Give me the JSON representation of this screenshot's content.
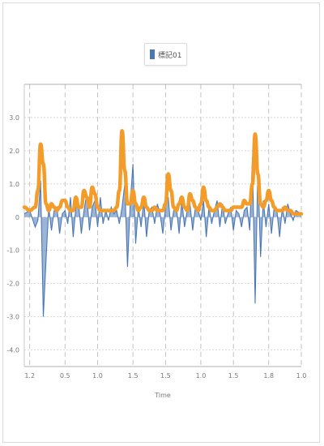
{
  "legend": {
    "label": "標記01",
    "swatch_color": "#4a78b5"
  },
  "chart_data": {
    "type": "line",
    "title": "",
    "xlabel": "Time",
    "ylabel": "",
    "xlim": [
      0.1,
      1.12
    ],
    "ylim": [
      -4.5,
      4.0
    ],
    "y_ticks": [
      3,
      2,
      1,
      0,
      -1,
      -2,
      -3,
      -4
    ],
    "x_ticks": [
      0.12,
      0.25,
      0.37,
      0.5,
      0.62,
      0.75,
      0.87,
      1.0,
      1.12
    ],
    "x_tick_labels": [
      "1.2",
      "0.5",
      "1.0",
      "1.5",
      "1.5",
      "1.0",
      "1.5",
      "1.8",
      "1.0"
    ],
    "y_tick_labels": [
      "3.0",
      "2.0",
      "1.0",
      "0",
      "-1.0",
      "-2.0",
      "-3.0",
      "-4.0"
    ],
    "grid": true,
    "series": [
      {
        "name": "標記01",
        "color": "#4a78b5",
        "style": "signal",
        "x": [
          0.1,
          0.12,
          0.14,
          0.15,
          0.16,
          0.17,
          0.18,
          0.19,
          0.2,
          0.21,
          0.22,
          0.23,
          0.24,
          0.25,
          0.26,
          0.27,
          0.28,
          0.29,
          0.3,
          0.31,
          0.32,
          0.33,
          0.34,
          0.35,
          0.36,
          0.37,
          0.38,
          0.39,
          0.4,
          0.41,
          0.42,
          0.43,
          0.44,
          0.45,
          0.46,
          0.47,
          0.48,
          0.49,
          0.5,
          0.51,
          0.52,
          0.53,
          0.54,
          0.55,
          0.56,
          0.57,
          0.58,
          0.59,
          0.6,
          0.61,
          0.62,
          0.63,
          0.64,
          0.65,
          0.66,
          0.67,
          0.68,
          0.69,
          0.7,
          0.71,
          0.72,
          0.73,
          0.74,
          0.75,
          0.76,
          0.77,
          0.78,
          0.79,
          0.8,
          0.81,
          0.82,
          0.83,
          0.84,
          0.85,
          0.86,
          0.87,
          0.88,
          0.89,
          0.9,
          0.91,
          0.92,
          0.93,
          0.94,
          0.95,
          0.96,
          0.97,
          0.98,
          0.99,
          1.0,
          1.01,
          1.02,
          1.03,
          1.04,
          1.05,
          1.06,
          1.07,
          1.08,
          1.09,
          1.1,
          1.12
        ],
        "y": [
          0.1,
          0.2,
          -0.3,
          -0.1,
          1.1,
          -3.0,
          -1.3,
          0.3,
          -0.4,
          0.2,
          0.3,
          -0.5,
          0.1,
          0.2,
          -0.2,
          0.6,
          -0.6,
          0.3,
          0.4,
          -0.5,
          0.2,
          0.7,
          -0.4,
          0.3,
          0.5,
          -0.3,
          0.6,
          -0.2,
          0.2,
          -0.1,
          0.3,
          0.1,
          0.2,
          -0.2,
          0.3,
          1.0,
          -1.5,
          0.4,
          1.6,
          -0.8,
          0.3,
          -0.3,
          0.5,
          -0.6,
          0.2,
          0.3,
          -0.2,
          0.4,
          0.1,
          -0.5,
          0.3,
          0.6,
          -0.4,
          0.2,
          0.3,
          -0.5,
          0.5,
          -0.3,
          0.2,
          0.4,
          -0.4,
          0.3,
          0.2,
          -0.1,
          0.5,
          -0.6,
          0.3,
          -0.2,
          0.2,
          0.5,
          -0.3,
          0.4,
          -0.2,
          0.1,
          0.3,
          -0.4,
          0.2,
          0.1,
          -0.3,
          0.2,
          0.3,
          -0.4,
          1.8,
          -2.6,
          1.5,
          -1.2,
          0.5,
          -0.3,
          0.4,
          -0.5,
          0.3,
          0.2,
          -0.6,
          0.3,
          -0.2,
          0.4,
          0.1,
          -0.1,
          0.2,
          0.1
        ]
      },
      {
        "name": "",
        "color": "#f39c2a",
        "style": "envelope",
        "x": [
          0.1,
          0.12,
          0.14,
          0.15,
          0.16,
          0.17,
          0.18,
          0.19,
          0.2,
          0.21,
          0.22,
          0.23,
          0.24,
          0.25,
          0.26,
          0.27,
          0.28,
          0.29,
          0.3,
          0.31,
          0.32,
          0.33,
          0.34,
          0.35,
          0.36,
          0.37,
          0.38,
          0.39,
          0.4,
          0.41,
          0.42,
          0.43,
          0.44,
          0.45,
          0.46,
          0.47,
          0.48,
          0.49,
          0.5,
          0.51,
          0.52,
          0.53,
          0.54,
          0.55,
          0.56,
          0.57,
          0.58,
          0.59,
          0.6,
          0.61,
          0.62,
          0.63,
          0.64,
          0.65,
          0.66,
          0.67,
          0.68,
          0.69,
          0.7,
          0.71,
          0.72,
          0.73,
          0.74,
          0.75,
          0.76,
          0.77,
          0.78,
          0.79,
          0.8,
          0.81,
          0.82,
          0.83,
          0.84,
          0.85,
          0.86,
          0.87,
          0.88,
          0.89,
          0.9,
          0.91,
          0.92,
          0.93,
          0.94,
          0.95,
          0.96,
          0.97,
          0.98,
          0.99,
          1.0,
          1.01,
          1.02,
          1.03,
          1.04,
          1.05,
          1.06,
          1.07,
          1.08,
          1.09,
          1.1,
          1.12
        ],
        "y": [
          0.3,
          0.2,
          0.3,
          0.8,
          2.2,
          1.6,
          0.4,
          0.2,
          0.4,
          0.3,
          0.2,
          0.3,
          0.5,
          0.5,
          0.3,
          0.2,
          0.2,
          0.6,
          0.3,
          0.3,
          0.8,
          0.6,
          0.3,
          0.9,
          0.7,
          0.3,
          0.2,
          0.2,
          0.2,
          0.2,
          0.2,
          0.2,
          0.3,
          0.8,
          2.6,
          1.4,
          0.4,
          0.4,
          0.8,
          0.4,
          0.2,
          0.3,
          0.6,
          0.3,
          0.2,
          0.2,
          0.3,
          0.2,
          0.2,
          0.2,
          0.4,
          1.3,
          0.8,
          0.3,
          0.2,
          0.4,
          0.6,
          0.3,
          0.2,
          0.7,
          0.5,
          0.3,
          0.2,
          0.4,
          0.9,
          0.5,
          0.3,
          0.2,
          0.2,
          0.3,
          0.4,
          0.3,
          0.2,
          0.2,
          0.2,
          0.3,
          0.3,
          0.3,
          0.3,
          0.5,
          0.4,
          0.4,
          1.0,
          2.5,
          1.3,
          0.4,
          0.3,
          0.5,
          0.8,
          0.5,
          0.3,
          0.2,
          0.2,
          0.2,
          0.3,
          0.2,
          0.2,
          0.1,
          0.1,
          0.1
        ]
      }
    ]
  }
}
